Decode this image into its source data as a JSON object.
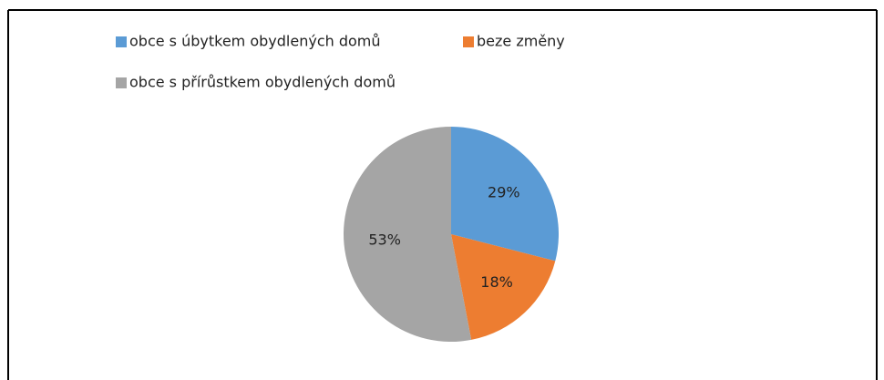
{
  "chart_data": {
    "type": "pie",
    "categories": [
      "obce s úbytkem obydlených domů",
      "beze změny",
      "obce s přírůstkem obydlených domů"
    ],
    "values": [
      29,
      18,
      53
    ],
    "value_labels": [
      "29%",
      "18%",
      "53%"
    ],
    "colors": [
      "#5b9bd5",
      "#ed7d31",
      "#a5a5a5"
    ],
    "legend": "top-left"
  }
}
